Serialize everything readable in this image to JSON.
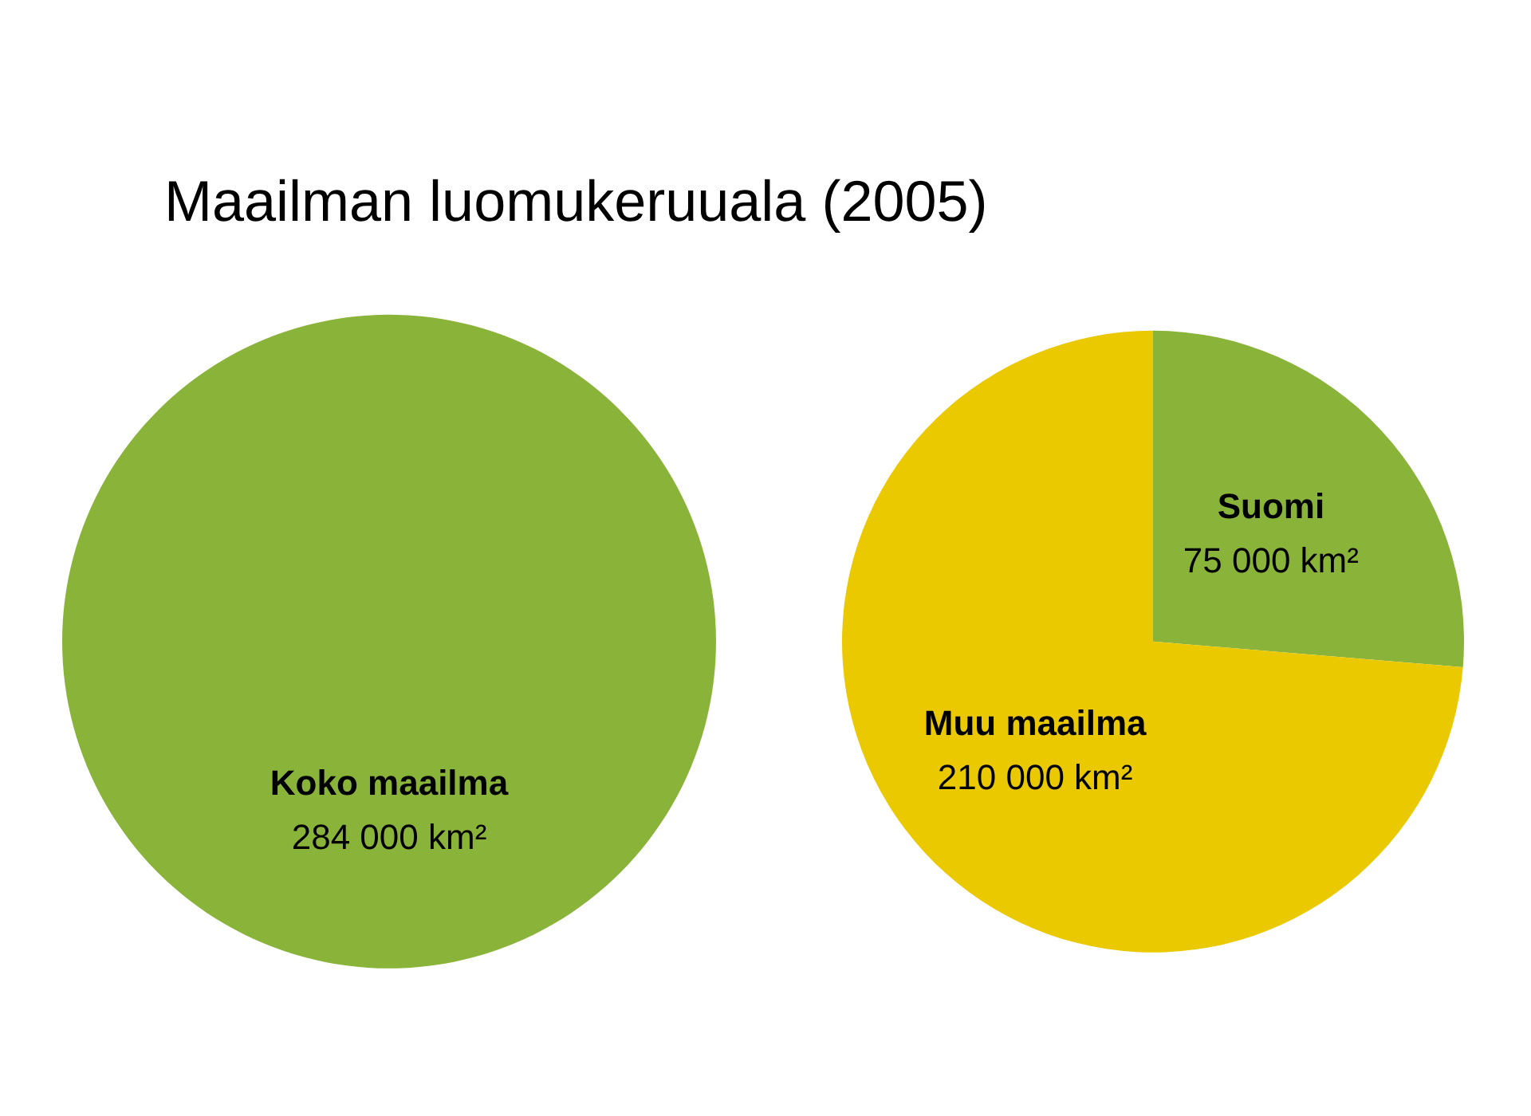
{
  "chart_data": [
    {
      "type": "pie",
      "title": "Maailman luomukeruuala (2005)",
      "categories": [
        "Koko maailma"
      ],
      "values": [
        284000
      ],
      "colors": [
        "#8ab33a"
      ],
      "value_labels": [
        "284 000 km²"
      ]
    },
    {
      "type": "pie",
      "categories": [
        "Suomi",
        "Muu maailma"
      ],
      "values": [
        75000,
        210000
      ],
      "colors": [
        "#8ab33a",
        "#eac900"
      ],
      "value_labels": [
        "75 000 km²",
        "210 000 km²"
      ]
    }
  ]
}
